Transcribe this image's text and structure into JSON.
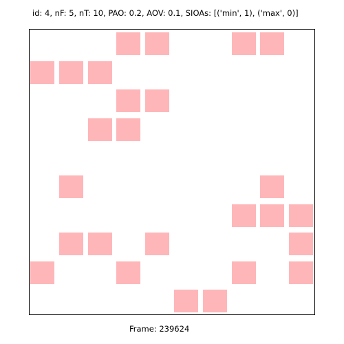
{
  "header": {
    "title": "id: 4, nF: 5, nT: 10, PAO: 0.2, AOV: 0.1, SIOAs: [('min', 1), ('max', 0)]"
  },
  "footer": {
    "frame_label": "Frame: 239624"
  },
  "grid": {
    "columns": 10,
    "rows": 10,
    "cell_color": "#ffb6b9",
    "background_color": "#ffffff",
    "border_color": "#000000",
    "filled_cells": [
      {
        "row": 0,
        "col": 3
      },
      {
        "row": 0,
        "col": 4
      },
      {
        "row": 0,
        "col": 7
      },
      {
        "row": 0,
        "col": 8
      },
      {
        "row": 1,
        "col": 0
      },
      {
        "row": 1,
        "col": 1
      },
      {
        "row": 1,
        "col": 2
      },
      {
        "row": 2,
        "col": 3
      },
      {
        "row": 2,
        "col": 4
      },
      {
        "row": 3,
        "col": 2
      },
      {
        "row": 3,
        "col": 3
      },
      {
        "row": 5,
        "col": 1
      },
      {
        "row": 5,
        "col": 8
      },
      {
        "row": 6,
        "col": 7
      },
      {
        "row": 6,
        "col": 8
      },
      {
        "row": 6,
        "col": 9
      },
      {
        "row": 7,
        "col": 1
      },
      {
        "row": 7,
        "col": 2
      },
      {
        "row": 7,
        "col": 4
      },
      {
        "row": 7,
        "col": 9
      },
      {
        "row": 8,
        "col": 0
      },
      {
        "row": 8,
        "col": 3
      },
      {
        "row": 8,
        "col": 7
      },
      {
        "row": 8,
        "col": 9
      },
      {
        "row": 9,
        "col": 5
      },
      {
        "row": 9,
        "col": 6
      }
    ]
  }
}
